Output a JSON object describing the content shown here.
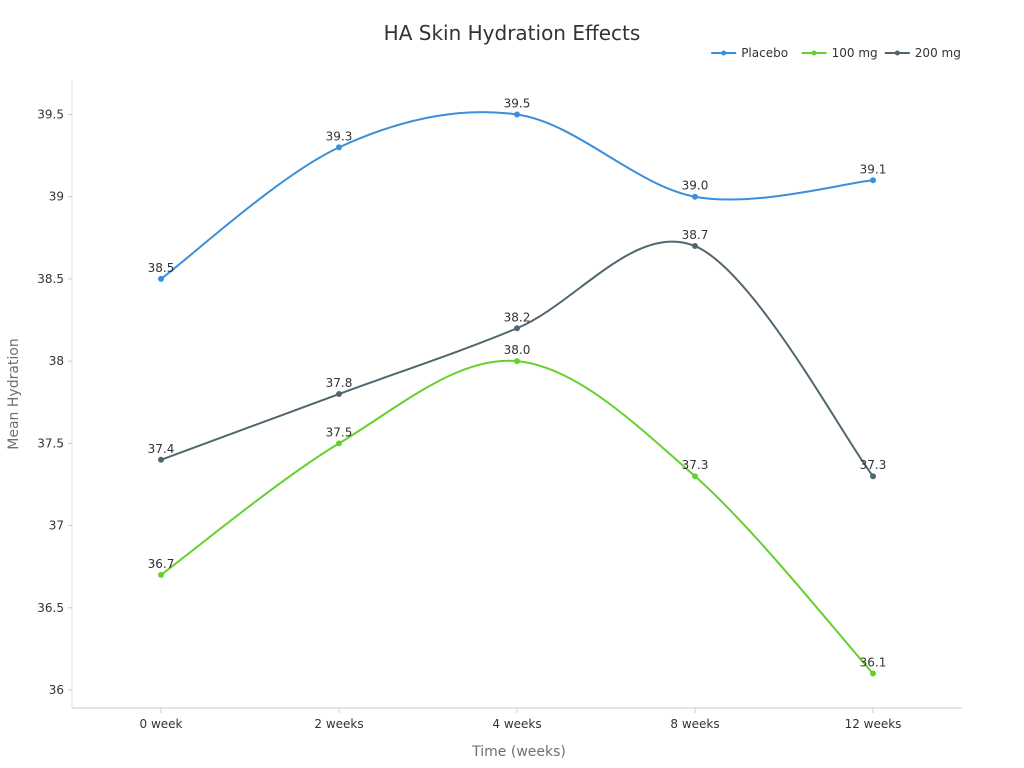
{
  "chart_data": {
    "type": "line",
    "title": "HA Skin Hydration Effects",
    "xlabel": "Time (weeks)",
    "ylabel": "Mean Hydration",
    "categories": [
      "0 week",
      "2 weeks",
      "4 weeks",
      "8 weeks",
      "12 weeks"
    ],
    "ylim": [
      35.9,
      39.7
    ],
    "yticks": [
      36,
      36.5,
      37,
      37.5,
      38,
      38.5,
      39,
      39.5
    ],
    "ytick_labels": [
      "36",
      "36.5",
      "37",
      "37.5",
      "38",
      "38.5",
      "39",
      "39.5"
    ],
    "legend_position": "top-right",
    "grid": false,
    "smooth": true,
    "series": [
      {
        "name": "Placebo",
        "color": "#3a8fd9",
        "values": [
          38.5,
          39.3,
          39.5,
          39.0,
          39.1
        ],
        "labels": [
          "38.5",
          "39.3",
          "39.5",
          "39.0",
          "39.1"
        ]
      },
      {
        "name": "100 mg",
        "color": "#66d12e",
        "values": [
          36.7,
          37.5,
          38.0,
          37.3,
          36.1
        ],
        "labels": [
          "36.7",
          "37.5",
          "38.0",
          "37.3",
          "36.1"
        ]
      },
      {
        "name": "200 mg",
        "color": "#51676f",
        "values": [
          37.4,
          37.8,
          38.2,
          38.7,
          37.3
        ],
        "labels": [
          "37.4",
          "37.8",
          "38.2",
          "38.7",
          "37.3"
        ]
      }
    ]
  }
}
